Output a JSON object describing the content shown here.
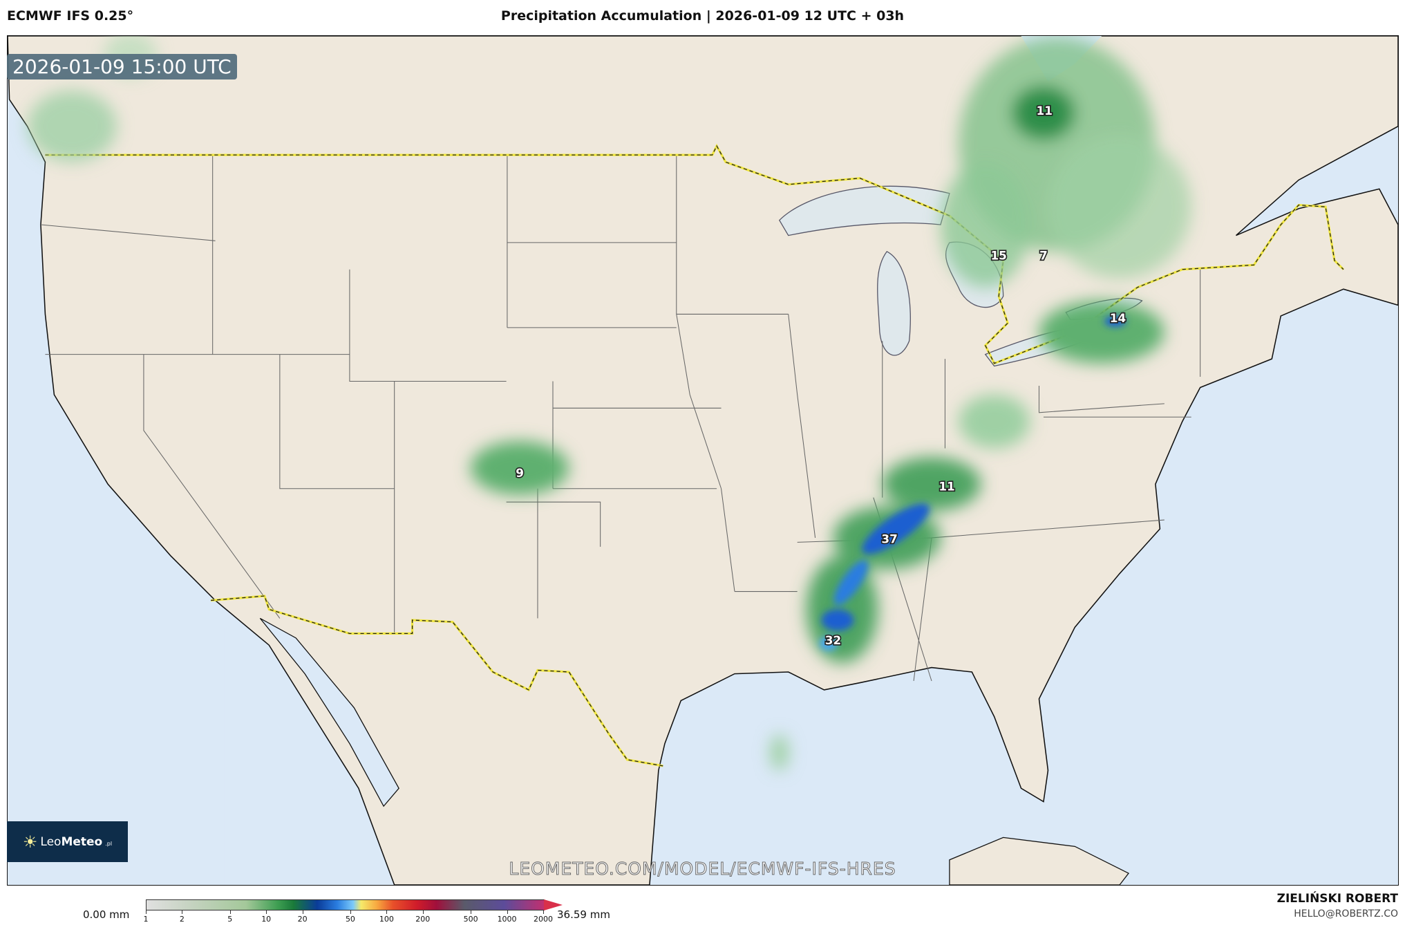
{
  "header": {
    "model": "ECMWF IFS 0.25°",
    "title": "Precipitation Accumulation | 2026-01-09 12 UTC + 03h"
  },
  "map": {
    "valid_time": "2026-01-09 15:00 UTC",
    "region": "Contiguous United States",
    "colors": {
      "land": "#efe8dc",
      "ocean": "#dbe9f7",
      "lakes": "#dfe8ec",
      "border": "#f0e640",
      "light_precip": "#7fc08a",
      "heavy_precip": "#1f5fd0"
    },
    "precip_max_labels": [
      "11",
      "15",
      "7",
      "14",
      "9",
      "11",
      "37",
      "32"
    ],
    "watermark": "LEOMETEO.COM/MODEL/ECMWF-IFS-HRES"
  },
  "logo": {
    "text_light": "Leo",
    "text_bold": "Meteo",
    "suffix": ".pl"
  },
  "colorbar": {
    "min_label": "0.00 mm",
    "max_label": "36.59 mm",
    "ticks": [
      "1",
      "2",
      "5",
      "10",
      "20",
      "50",
      "100",
      "200",
      "500",
      "1000",
      "2000"
    ]
  },
  "footer": {
    "author": "ZIELIŃSKI ROBERT",
    "email": "HELLO@ROBERTZ.CO"
  }
}
